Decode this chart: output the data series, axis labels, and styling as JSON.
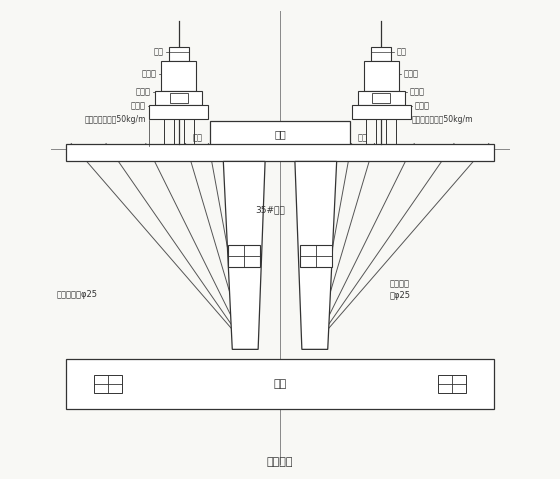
{
  "bg_color": "#f8f8f5",
  "line_color": "#555555",
  "dark_line": "#333333",
  "title": "（图二）",
  "top_cap_label": "顶帽",
  "body_label": "35#鄢身",
  "pier_label": "承台",
  "left_screw_label": "精轧螺纹鈢φ25",
  "right_screw_label": "精轧螺纹\n鈢φ25",
  "anchor_label": "锶具",
  "lbl_luomu": "螺母",
  "lbl_qianjinding": "千斤顶",
  "lbl_tiemadeng": "鐵马敘",
  "lbl_biandanliang": "扁担棁",
  "lbl_gongzigangL": "工字鈢（鈢轨）50kg/m",
  "lbl_gongzigangR": "工字鈢（鈢轨）50kg/m"
}
